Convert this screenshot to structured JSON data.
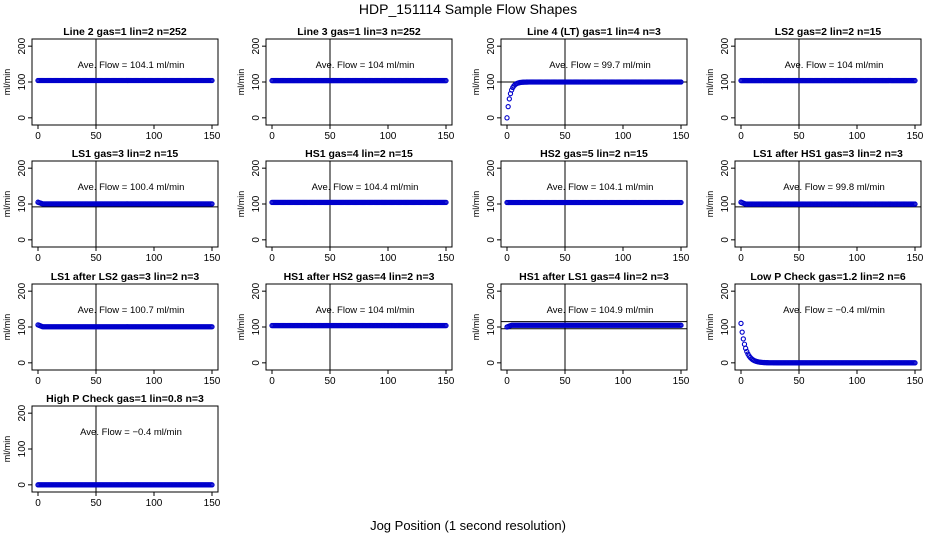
{
  "figure": {
    "title": "HDP_151114  Sample Flow Shapes",
    "xlabel": "Jog Position (1 second resolution)"
  },
  "chart_data": [
    {
      "type": "scatter",
      "title": "Line 2 gas=1 lin=2 n=252",
      "annotation": "Ave. Flow = 104.1  ml/min",
      "ylabel": "ml/min",
      "xlim": [
        0,
        150
      ],
      "ylim": [
        -20,
        220
      ],
      "x_ticks": [
        0,
        50,
        100,
        150
      ],
      "y_ticks": [
        0,
        100,
        200
      ],
      "vline": 50,
      "hlines": [],
      "shape": "flat",
      "level": 104.1,
      "start": 104.1,
      "settle": 0,
      "color": "#0000cc"
    },
    {
      "type": "scatter",
      "title": "Line 3 gas=1 lin=3 n=252",
      "annotation": "Ave. Flow = 104  ml/min",
      "ylabel": "ml/min",
      "xlim": [
        0,
        150
      ],
      "ylim": [
        -20,
        220
      ],
      "x_ticks": [
        0,
        50,
        100,
        150
      ],
      "y_ticks": [
        0,
        100,
        200
      ],
      "vline": 50,
      "hlines": [],
      "shape": "flat",
      "level": 104,
      "start": 104,
      "settle": 0,
      "color": "#0000cc"
    },
    {
      "type": "scatter",
      "title": "Line 4 (LT) gas=1 lin=4 n=3",
      "annotation": "Ave. Flow = 99.7  ml/min",
      "ylabel": "ml/min",
      "xlim": [
        0,
        150
      ],
      "ylim": [
        -20,
        220
      ],
      "x_ticks": [
        0,
        50,
        100,
        150
      ],
      "y_ticks": [
        0,
        100,
        200
      ],
      "vline": 50,
      "hlines": [
        100
      ],
      "shape": "rise",
      "level": 100,
      "start": 0,
      "settle": 8,
      "color": "#0000cc"
    },
    {
      "type": "scatter",
      "title": "LS2 gas=2 lin=2 n=15",
      "annotation": "Ave. Flow = 104  ml/min",
      "ylabel": "ml/min",
      "xlim": [
        0,
        150
      ],
      "ylim": [
        -20,
        220
      ],
      "x_ticks": [
        0,
        50,
        100,
        150
      ],
      "y_ticks": [
        0,
        100,
        200
      ],
      "vline": 50,
      "hlines": [],
      "shape": "flat",
      "level": 104,
      "start": 104,
      "settle": 0,
      "color": "#0000cc"
    },
    {
      "type": "scatter",
      "title": "LS1 gas=3 lin=2 n=15",
      "annotation": "Ave. Flow = 100.4  ml/min",
      "ylabel": "ml/min",
      "xlim": [
        0,
        150
      ],
      "ylim": [
        -20,
        220
      ],
      "x_ticks": [
        0,
        50,
        100,
        150
      ],
      "y_ticks": [
        0,
        100,
        200
      ],
      "vline": 50,
      "hlines": [
        92
      ],
      "shape": "flat",
      "level": 100.4,
      "start": 105,
      "settle": 4,
      "color": "#0000cc"
    },
    {
      "type": "scatter",
      "title": "HS1 gas=4 lin=2 n=15",
      "annotation": "Ave. Flow = 104.4  ml/min",
      "ylabel": "ml/min",
      "xlim": [
        0,
        150
      ],
      "ylim": [
        -20,
        220
      ],
      "x_ticks": [
        0,
        50,
        100,
        150
      ],
      "y_ticks": [
        0,
        100,
        200
      ],
      "vline": 50,
      "hlines": [],
      "shape": "flat",
      "level": 104.4,
      "start": 104.4,
      "settle": 0,
      "color": "#0000cc"
    },
    {
      "type": "scatter",
      "title": "HS2 gas=5 lin=2 n=15",
      "annotation": "Ave. Flow = 104.1  ml/min",
      "ylabel": "ml/min",
      "xlim": [
        0,
        150
      ],
      "ylim": [
        -20,
        220
      ],
      "x_ticks": [
        0,
        50,
        100,
        150
      ],
      "y_ticks": [
        0,
        100,
        200
      ],
      "vline": 50,
      "hlines": [],
      "shape": "flat",
      "level": 104.1,
      "start": 104.1,
      "settle": 0,
      "color": "#0000cc"
    },
    {
      "type": "scatter",
      "title": "LS1 after HS1 gas=3 lin=2 n=3",
      "annotation": "Ave. Flow = 99.8  ml/min",
      "ylabel": "ml/min",
      "xlim": [
        0,
        150
      ],
      "ylim": [
        -20,
        220
      ],
      "x_ticks": [
        0,
        50,
        100,
        150
      ],
      "y_ticks": [
        0,
        100,
        200
      ],
      "vline": 50,
      "hlines": [
        92
      ],
      "shape": "flat",
      "level": 99.8,
      "start": 105,
      "settle": 4,
      "color": "#0000cc"
    },
    {
      "type": "scatter",
      "title": "LS1 after LS2 gas=3 lin=2 n=3",
      "annotation": "Ave. Flow = 100.7  ml/min",
      "ylabel": "ml/min",
      "xlim": [
        0,
        150
      ],
      "ylim": [
        -20,
        220
      ],
      "x_ticks": [
        0,
        50,
        100,
        150
      ],
      "y_ticks": [
        0,
        100,
        200
      ],
      "vline": 50,
      "hlines": [],
      "shape": "flat",
      "level": 100.7,
      "start": 106,
      "settle": 4,
      "color": "#0000cc"
    },
    {
      "type": "scatter",
      "title": "HS1 after HS2 gas=4 lin=2 n=3",
      "annotation": "Ave. Flow = 104  ml/min",
      "ylabel": "ml/min",
      "xlim": [
        0,
        150
      ],
      "ylim": [
        -20,
        220
      ],
      "x_ticks": [
        0,
        50,
        100,
        150
      ],
      "y_ticks": [
        0,
        100,
        200
      ],
      "vline": 50,
      "hlines": [],
      "shape": "flat",
      "level": 104,
      "start": 104,
      "settle": 0,
      "color": "#0000cc"
    },
    {
      "type": "scatter",
      "title": "HS1 after LS1 gas=4 lin=2 n=3",
      "annotation": "Ave. Flow = 104.9  ml/min",
      "ylabel": "ml/min",
      "xlim": [
        0,
        150
      ],
      "ylim": [
        -20,
        220
      ],
      "x_ticks": [
        0,
        50,
        100,
        150
      ],
      "y_ticks": [
        0,
        100,
        200
      ],
      "vline": 50,
      "hlines": [
        115,
        95
      ],
      "shape": "flat",
      "level": 104.9,
      "start": 100,
      "settle": 4,
      "color": "#0000cc"
    },
    {
      "type": "scatter",
      "title": "Low P Check gas=1.2 lin=2 n=6",
      "annotation": "Ave. Flow = −0.4  ml/min",
      "ylabel": "ml/min",
      "xlim": [
        0,
        150
      ],
      "ylim": [
        -20,
        220
      ],
      "x_ticks": [
        0,
        50,
        100,
        150
      ],
      "y_ticks": [
        0,
        100,
        200
      ],
      "vline": 50,
      "hlines": [],
      "shape": "decay",
      "level": 0,
      "start": 110,
      "settle": 12,
      "color": "#0000cc"
    },
    {
      "type": "scatter",
      "title": "High P Check gas=1 lin=0.8 n=3",
      "annotation": "Ave. Flow = −0.4  ml/min",
      "ylabel": "ml/min",
      "xlim": [
        0,
        150
      ],
      "ylim": [
        -20,
        220
      ],
      "x_ticks": [
        0,
        50,
        100,
        150
      ],
      "y_ticks": [
        0,
        100,
        200
      ],
      "vline": 50,
      "hlines": [],
      "shape": "flat",
      "level": 0,
      "start": 0,
      "settle": 0,
      "color": "#0000cc"
    }
  ]
}
